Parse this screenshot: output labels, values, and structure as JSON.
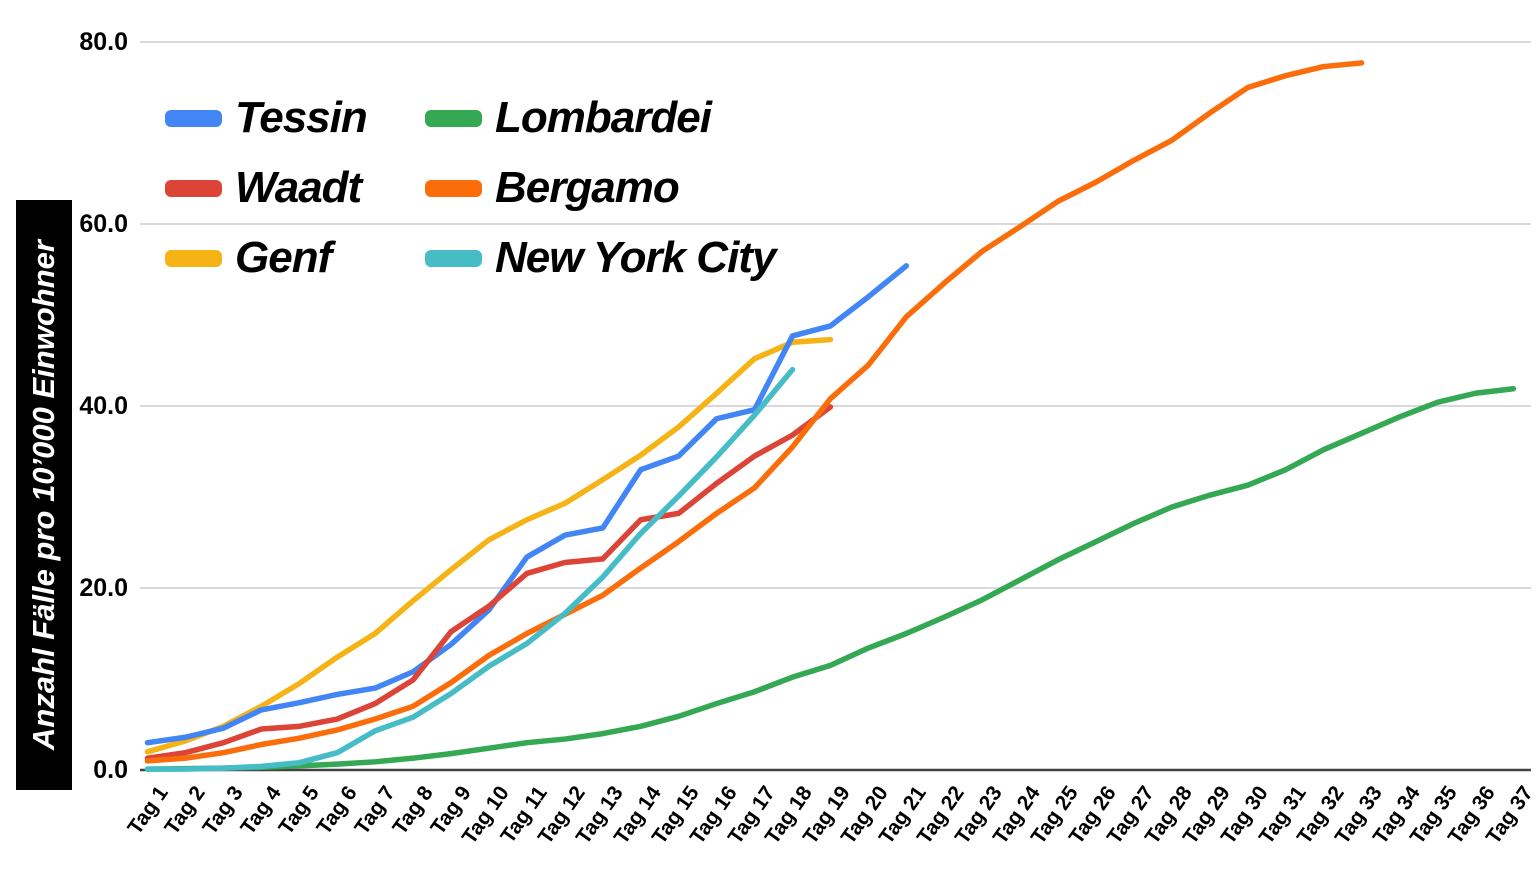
{
  "page": {
    "background": "#ffffff"
  },
  "chart_data": {
    "type": "line",
    "title": "",
    "xlabel": "",
    "ylabel": "Anzahl Fälle pro 10’000 Einwohner",
    "ylim": [
      0,
      80
    ],
    "grid": true,
    "axis_color": "#424242",
    "grid_color": "#d9d9d9",
    "legend_position": "top-left",
    "y_tick_labels": [
      "0.0",
      "20.0",
      "40.0",
      "60.0",
      "80.0"
    ],
    "y_tick_values": [
      0,
      20,
      40,
      60,
      80
    ],
    "x_tick_labels": [
      "Tag 1",
      "Tag 2",
      "Tag 3",
      "Tag 4",
      "Tag 5",
      "Tag 6",
      "Tag 7",
      "Tag 8",
      "Tag 9",
      "Tag 10",
      "Tag 11",
      "Tag 12",
      "Tag 13",
      "Tag 14",
      "Tag 15",
      "Tag 16",
      "Tag 17",
      "Tag 18",
      "Tag 19",
      "Tag 20",
      "Tag 21",
      "Tag 22",
      "Tag 23",
      "Tag 24",
      "Tag 25",
      "Tag 26",
      "Tag 27",
      "Tag 28",
      "Tag 29",
      "Tag 30",
      "Tag 31",
      "Tag 32",
      "Tag 33",
      "Tag 34",
      "Tag 35",
      "Tag 36",
      "Tag 37"
    ],
    "legend_columns": [
      [
        "Tessin",
        "Waadt",
        "Genf"
      ],
      [
        "Lombardei",
        "Bergamo",
        "New York City"
      ]
    ],
    "series": [
      {
        "name": "Lombardei",
        "color": "#34A853",
        "start_day": 1,
        "values": [
          0.1,
          0.15,
          0.2,
          0.3,
          0.45,
          0.65,
          0.9,
          1.3,
          1.8,
          2.4,
          3.0,
          3.4,
          4.0,
          4.8,
          5.9,
          7.3,
          8.6,
          10.2,
          11.5,
          13.4,
          15.0,
          16.8,
          18.7,
          20.9,
          23.1,
          25.1,
          27.1,
          28.9,
          30.2,
          31.3,
          33.0,
          35.2,
          37.0,
          38.8,
          40.4,
          41.4,
          41.9
        ]
      },
      {
        "name": "Genf",
        "color": "#F5B316",
        "start_day": 1,
        "values": [
          2.0,
          3.2,
          4.8,
          7.0,
          9.5,
          12.4,
          15.0,
          18.6,
          22.0,
          25.3,
          27.5,
          29.3,
          31.9,
          34.6,
          37.7,
          41.4,
          45.2,
          47.0,
          47.3
        ]
      },
      {
        "name": "Tessin",
        "color": "#4285F4",
        "start_day": 1,
        "values": [
          3.0,
          3.6,
          4.6,
          6.6,
          7.4,
          8.3,
          9.0,
          10.8,
          13.8,
          17.6,
          23.4,
          25.8,
          26.6,
          33.0,
          34.5,
          38.6,
          39.6,
          47.7,
          48.8,
          52.0,
          55.4
        ]
      },
      {
        "name": "Waadt",
        "color": "#DB4437",
        "start_day": 1,
        "values": [
          1.3,
          1.9,
          3.0,
          4.5,
          4.8,
          5.6,
          7.3,
          9.9,
          15.2,
          18.0,
          21.6,
          22.8,
          23.2,
          27.5,
          28.2,
          31.5,
          34.5,
          36.8,
          39.9
        ]
      },
      {
        "name": "Bergamo",
        "color": "#FB6D0A",
        "start_day": 1,
        "values": [
          1.0,
          1.3,
          1.9,
          2.8,
          3.5,
          4.4,
          5.6,
          7.0,
          9.6,
          12.6,
          15.0,
          17.1,
          19.2,
          22.2,
          25.1,
          28.2,
          31.0,
          35.5,
          40.8,
          44.5,
          49.8,
          53.5,
          57.0,
          59.7,
          62.5,
          64.6,
          67.0,
          69.2,
          72.2,
          75.0,
          76.3,
          77.3,
          77.7
        ]
      },
      {
        "name": "New York City",
        "color": "#46BDC6",
        "start_day": 1,
        "values": [
          0.1,
          0.1,
          0.2,
          0.4,
          0.8,
          1.9,
          4.3,
          5.8,
          8.4,
          11.4,
          13.9,
          17.2,
          21.2,
          26.0,
          30.1,
          34.4,
          39.0,
          44.0
        ]
      }
    ]
  }
}
